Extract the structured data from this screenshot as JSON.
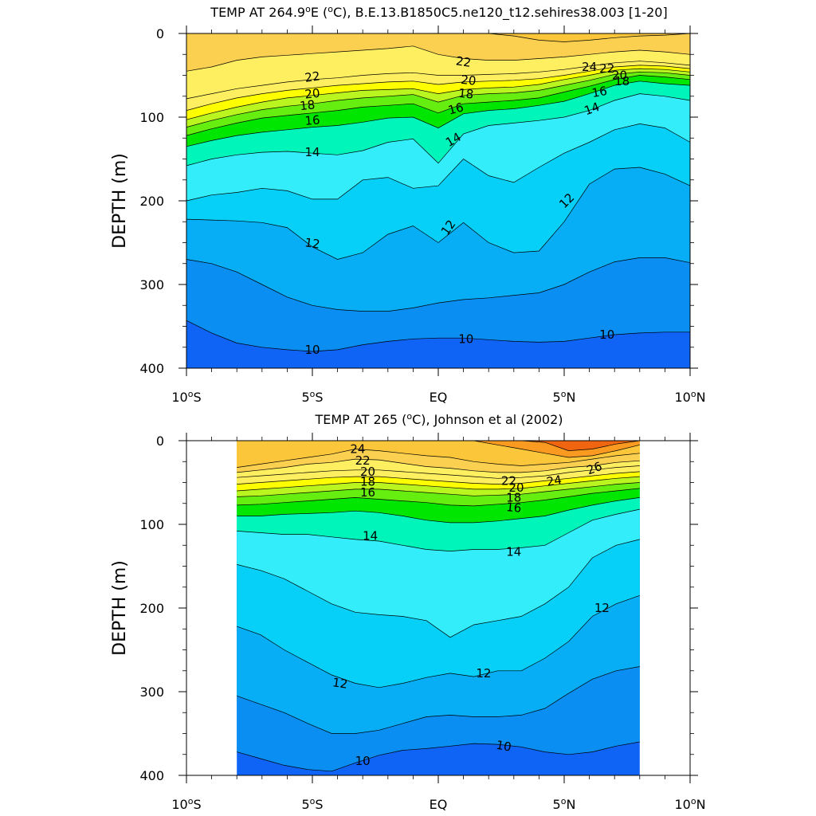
{
  "palette": {
    "10": "#0f63f5",
    "11": "#0a8ef2",
    "12": "#07aef5",
    "13": "#07d0f8",
    "14": "#33eefa",
    "15": "#00f5bb",
    "16": "#00e600",
    "17": "#66ee10",
    "18": "#bbf520",
    "19": "#fefe00",
    "20": "#fdef60",
    "22": "#fbd050",
    "24": "#fbc63a",
    "26": "#fa9a20",
    "28": "#f06510",
    "30": "#ee2a08"
  },
  "chart_data": [
    {
      "type": "heatmap",
      "title_main": "TEMP AT 264.9",
      "title_deg": "o",
      "title_unit_pre": "E (",
      "title_unit_deg": "o",
      "title_tail": "C), B.E.13.B1850C5.ne120_t12.sehires38.003 [1-20]",
      "ylabel": "DEPTH (m)",
      "xlim": [
        -10,
        10
      ],
      "ylim": [
        400,
        0
      ],
      "y_ticks": [
        "0",
        "100",
        "200",
        "300",
        "400"
      ],
      "x_ticks": [
        "10°S",
        "5°S",
        "EQ",
        "5°N",
        "10°N"
      ],
      "data_x_range": [
        -10,
        10
      ],
      "contours": [
        {
          "level": 10,
          "depth": [
            343,
            358,
            370,
            375,
            378,
            380,
            378,
            372,
            368,
            365,
            364,
            364,
            366,
            368,
            369,
            368,
            364,
            360,
            358,
            357,
            357
          ]
        },
        {
          "level": 11,
          "depth": [
            270,
            275,
            285,
            300,
            315,
            325,
            330,
            332,
            332,
            328,
            322,
            318,
            316,
            313,
            310,
            300,
            285,
            273,
            268,
            268,
            274
          ]
        },
        {
          "level": 12,
          "depth": [
            222,
            223,
            224,
            226,
            232,
            255,
            270,
            262,
            240,
            230,
            250,
            226,
            250,
            262,
            260,
            225,
            180,
            162,
            160,
            168,
            182
          ]
        },
        {
          "level": 13,
          "depth": [
            200,
            193,
            190,
            185,
            188,
            198,
            198,
            175,
            172,
            185,
            182,
            150,
            170,
            178,
            160,
            143,
            130,
            115,
            108,
            113,
            130
          ]
        },
        {
          "level": 14,
          "depth": [
            158,
            150,
            145,
            142,
            141,
            143,
            145,
            140,
            130,
            126,
            155,
            120,
            110,
            107,
            104,
            100,
            92,
            80,
            72,
            75,
            80
          ]
        },
        {
          "level": 15,
          "depth": [
            135,
            128,
            122,
            118,
            115,
            112,
            110,
            106,
            101,
            100,
            113,
            96,
            92,
            90,
            86,
            81,
            72,
            62,
            57,
            60,
            62
          ]
        },
        {
          "level": 16,
          "depth": [
            122,
            114,
            107,
            101,
            98,
            95,
            92,
            88,
            86,
            84,
            95,
            84,
            82,
            80,
            77,
            70,
            63,
            55,
            50,
            52,
            55
          ]
        },
        {
          "level": 17,
          "depth": [
            112,
            104,
            97,
            91,
            87,
            84,
            80,
            77,
            75,
            73,
            82,
            74,
            72,
            71,
            68,
            62,
            56,
            49,
            46,
            47,
            50
          ]
        },
        {
          "level": 18,
          "depth": [
            103,
            95,
            88,
            82,
            77,
            74,
            71,
            68,
            67,
            66,
            72,
            67,
            65,
            64,
            61,
            55,
            50,
            44,
            42,
            43,
            46
          ]
        },
        {
          "level": 19,
          "depth": [
            92,
            84,
            77,
            72,
            68,
            65,
            62,
            60,
            58,
            57,
            61,
            58,
            57,
            56,
            54,
            50,
            45,
            40,
            38,
            39,
            42
          ]
        },
        {
          "level": 20,
          "depth": [
            78,
            72,
            66,
            62,
            58,
            55,
            53,
            50,
            48,
            47,
            50,
            50,
            49,
            48,
            46,
            43,
            39,
            35,
            33,
            35,
            38
          ]
        },
        {
          "level": 22,
          "depth": [
            45,
            40,
            32,
            28,
            26,
            24,
            22,
            20,
            18,
            15,
            25,
            30,
            32,
            32,
            30,
            28,
            25,
            22,
            20,
            22,
            25
          ]
        },
        {
          "level": 24,
          "depth": [
            0,
            0,
            0,
            0,
            0,
            0,
            0,
            0,
            0,
            0,
            0,
            0,
            0,
            3,
            8,
            10,
            8,
            5,
            3,
            2,
            0
          ]
        }
      ],
      "labels": [
        {
          "text": "22",
          "x": -5.0,
          "depth": 52,
          "angle": -8
        },
        {
          "text": "20",
          "x": -5.0,
          "depth": 72,
          "angle": -6
        },
        {
          "text": "18",
          "x": -5.2,
          "depth": 86,
          "angle": -6
        },
        {
          "text": "16",
          "x": -5.0,
          "depth": 104,
          "angle": -4
        },
        {
          "text": "14",
          "x": -5.0,
          "depth": 142,
          "angle": 0
        },
        {
          "text": "12",
          "x": -5.0,
          "depth": 251,
          "angle": 8
        },
        {
          "text": "10",
          "x": -5.0,
          "depth": 378,
          "angle": 0
        },
        {
          "text": "22",
          "x": 1.0,
          "depth": 34,
          "angle": 8
        },
        {
          "text": "20",
          "x": 1.2,
          "depth": 56,
          "angle": 6
        },
        {
          "text": "18",
          "x": 1.1,
          "depth": 72,
          "angle": 6
        },
        {
          "text": "16",
          "x": 0.7,
          "depth": 90,
          "angle": -15
        },
        {
          "text": "14",
          "x": 0.6,
          "depth": 127,
          "angle": -30
        },
        {
          "text": "12",
          "x": 0.4,
          "depth": 232,
          "angle": -55
        },
        {
          "text": "10",
          "x": 1.1,
          "depth": 365,
          "angle": 0
        },
        {
          "text": "24",
          "x": 6.0,
          "depth": 40,
          "angle": 0
        },
        {
          "text": "22",
          "x": 6.7,
          "depth": 42,
          "angle": 0
        },
        {
          "text": "20",
          "x": 7.2,
          "depth": 50,
          "angle": 0
        },
        {
          "text": "18",
          "x": 7.3,
          "depth": 57,
          "angle": 0
        },
        {
          "text": "16",
          "x": 6.4,
          "depth": 70,
          "angle": -10
        },
        {
          "text": "14",
          "x": 6.1,
          "depth": 90,
          "angle": -20
        },
        {
          "text": "12",
          "x": 5.1,
          "depth": 200,
          "angle": -45
        },
        {
          "text": "10",
          "x": 6.7,
          "depth": 360,
          "angle": 0
        }
      ]
    },
    {
      "type": "heatmap",
      "title_main": "TEMP AT 265 (",
      "title_deg": "o",
      "title_tail": "C), Johnson et al (2002)",
      "ylabel": "DEPTH (m)",
      "xlim": [
        -10,
        10
      ],
      "ylim": [
        400,
        0
      ],
      "y_ticks": [
        "0",
        "100",
        "200",
        "300",
        "400"
      ],
      "x_ticks": [
        "10°S",
        "5°S",
        "EQ",
        "5°N",
        "10°N"
      ],
      "data_x_range": [
        -8,
        8
      ],
      "contours": [
        {
          "level": 10,
          "depth": [
            372,
            380,
            388,
            393,
            395,
            385,
            376,
            370,
            368,
            365,
            362,
            363,
            366,
            372,
            375,
            372,
            365,
            360
          ]
        },
        {
          "level": 11,
          "depth": [
            305,
            315,
            325,
            338,
            350,
            350,
            346,
            338,
            330,
            328,
            330,
            330,
            328,
            320,
            302,
            285,
            275,
            270
          ]
        },
        {
          "level": 12,
          "depth": [
            222,
            232,
            250,
            265,
            280,
            290,
            295,
            290,
            283,
            278,
            282,
            275,
            275,
            260,
            240,
            210,
            195,
            185
          ]
        },
        {
          "level": 13,
          "depth": [
            148,
            155,
            165,
            180,
            195,
            205,
            208,
            210,
            215,
            235,
            220,
            215,
            210,
            195,
            175,
            140,
            125,
            118
          ]
        },
        {
          "level": 14,
          "depth": [
            108,
            110,
            112,
            112,
            115,
            118,
            120,
            125,
            130,
            132,
            130,
            130,
            128,
            125,
            110,
            95,
            88,
            82
          ]
        },
        {
          "level": 15,
          "depth": [
            90,
            90,
            88,
            87,
            86,
            84,
            86,
            90,
            95,
            98,
            98,
            96,
            93,
            90,
            83,
            77,
            72,
            68
          ]
        },
        {
          "level": 16,
          "depth": [
            77,
            76,
            74,
            72,
            70,
            68,
            70,
            72,
            74,
            77,
            78,
            76,
            74,
            71,
            67,
            63,
            60,
            57
          ]
        },
        {
          "level": 17,
          "depth": [
            67,
            66,
            64,
            62,
            60,
            58,
            58,
            60,
            62,
            64,
            66,
            65,
            64,
            61,
            58,
            55,
            52,
            50
          ]
        },
        {
          "level": 18,
          "depth": [
            60,
            58,
            56,
            54,
            52,
            50,
            50,
            52,
            54,
            56,
            58,
            58,
            57,
            54,
            51,
            48,
            45,
            43
          ]
        },
        {
          "level": 19,
          "depth": [
            52,
            50,
            48,
            46,
            44,
            43,
            43,
            45,
            47,
            49,
            51,
            52,
            51,
            48,
            45,
            42,
            39,
            37
          ]
        },
        {
          "level": 20,
          "depth": [
            44,
            42,
            40,
            38,
            36,
            35,
            35,
            37,
            39,
            41,
            43,
            45,
            44,
            42,
            38,
            35,
            32,
            30
          ]
        },
        {
          "level": 22,
          "depth": [
            38,
            35,
            32,
            28,
            26,
            22,
            23,
            27,
            31,
            33,
            36,
            38,
            38,
            36,
            32,
            30,
            26,
            24
          ]
        },
        {
          "level": 24,
          "depth": [
            32,
            28,
            24,
            20,
            16,
            10,
            12,
            15,
            18,
            20,
            25,
            28,
            30,
            28,
            26,
            22,
            18,
            15
          ]
        },
        {
          "level": 26,
          "depth": [
            0,
            0,
            0,
            0,
            0,
            0,
            0,
            0,
            0,
            0,
            0,
            5,
            10,
            15,
            20,
            18,
            12,
            5
          ]
        },
        {
          "level": 28,
          "depth": [
            0,
            0,
            0,
            0,
            0,
            0,
            0,
            0,
            0,
            0,
            0,
            0,
            0,
            2,
            12,
            10,
            4,
            0
          ]
        }
      ],
      "labels": [
        {
          "text": "24",
          "x": -3.2,
          "depth": 10,
          "angle": 0
        },
        {
          "text": "22",
          "x": -3.0,
          "depth": 24,
          "angle": 0
        },
        {
          "text": "20",
          "x": -2.8,
          "depth": 37,
          "angle": 0
        },
        {
          "text": "18",
          "x": -2.8,
          "depth": 49,
          "angle": 0
        },
        {
          "text": "16",
          "x": -2.8,
          "depth": 62,
          "angle": 0
        },
        {
          "text": "14",
          "x": -2.7,
          "depth": 114,
          "angle": 0
        },
        {
          "text": "12",
          "x": -3.9,
          "depth": 290,
          "angle": 8
        },
        {
          "text": "10",
          "x": -3.0,
          "depth": 383,
          "angle": 0
        },
        {
          "text": "22",
          "x": 2.8,
          "depth": 48,
          "angle": 0
        },
        {
          "text": "20",
          "x": 3.1,
          "depth": 56,
          "angle": 0
        },
        {
          "text": "18",
          "x": 3.0,
          "depth": 68,
          "angle": 0
        },
        {
          "text": "16",
          "x": 3.0,
          "depth": 80,
          "angle": 5
        },
        {
          "text": "14",
          "x": 3.0,
          "depth": 133,
          "angle": 0
        },
        {
          "text": "12",
          "x": 1.8,
          "depth": 278,
          "angle": 0
        },
        {
          "text": "10",
          "x": 2.6,
          "depth": 365,
          "angle": 10
        },
        {
          "text": "24",
          "x": 4.6,
          "depth": 48,
          "angle": -10
        },
        {
          "text": "26",
          "x": 6.2,
          "depth": 33,
          "angle": -20
        },
        {
          "text": "12",
          "x": 6.5,
          "depth": 200,
          "angle": 0
        }
      ]
    }
  ]
}
